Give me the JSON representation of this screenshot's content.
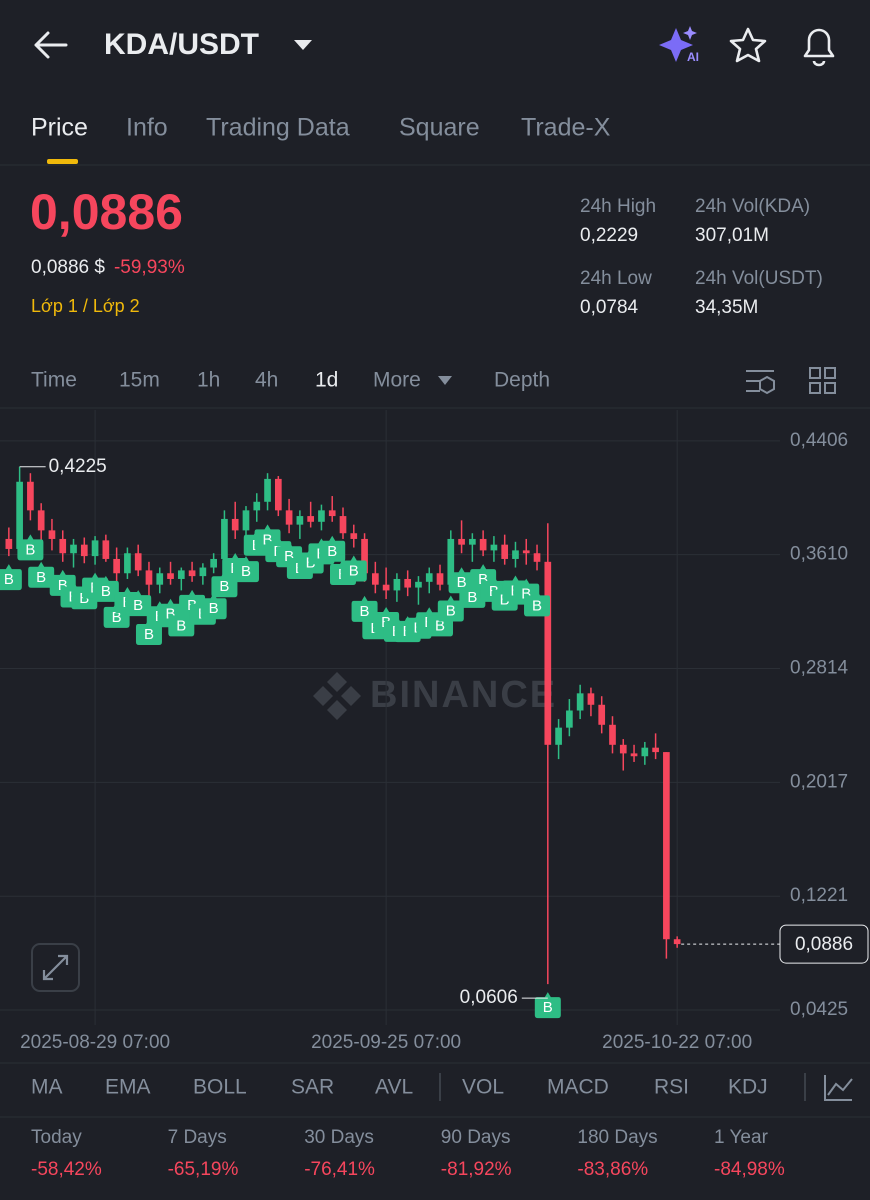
{
  "header": {
    "pair": "KDA/USDT",
    "ai_badge": "AI"
  },
  "tabs": [
    "Price",
    "Info",
    "Trading Data",
    "Square",
    "Trade-X"
  ],
  "price": {
    "last": "0,0886",
    "fiat": "0,0886 $",
    "change": "-59,93%",
    "layer": "Lớp 1 / Lớp 2"
  },
  "stats": [
    {
      "label": "24h High",
      "value": "0,2229"
    },
    {
      "label": "24h Vol(KDA)",
      "value": "307,01M"
    },
    {
      "label": "24h Low",
      "value": "0,0784"
    },
    {
      "label": "24h Vol(USDT)",
      "value": "34,35M"
    }
  ],
  "intervals": [
    "Time",
    "15m",
    "1h",
    "4h",
    "1d",
    "More",
    "Depth"
  ],
  "chart_data": {
    "type": "candlestick",
    "up_color": "#2ebd85",
    "down_color": "#f6465d",
    "grid": true,
    "watermark": "BINANCE",
    "xlim": [
      -0.82,
      71.54
    ],
    "xticks": [
      {
        "value": 8,
        "label": "2025-08-29 07:00"
      },
      {
        "value": 35,
        "label": "2025-09-25 07:00"
      },
      {
        "value": 62,
        "label": "2025-10-22 07:00"
      }
    ],
    "ylim": [
      0.032,
      0.4622
    ],
    "yticks": [
      {
        "value": 0.4406,
        "label": "0,4406"
      },
      {
        "value": 0.361,
        "label": "0,3610"
      },
      {
        "value": 0.2814,
        "label": "0,2814"
      },
      {
        "value": 0.2017,
        "label": "0,2017"
      },
      {
        "value": 0.1221,
        "label": "0,1221"
      },
      {
        "value": 0.0425,
        "label": "0,0425"
      }
    ],
    "open": [
      0.372,
      0.365,
      0.412,
      0.392,
      0.378,
      0.372,
      0.362,
      0.368,
      0.36,
      0.371,
      0.358,
      0.348,
      0.362,
      0.35,
      0.34,
      0.348,
      0.344,
      0.35,
      0.346,
      0.352,
      0.358,
      0.386,
      0.378,
      0.392,
      0.398,
      0.414,
      0.392,
      0.382,
      0.388,
      0.384,
      0.392,
      0.388,
      0.376,
      0.372,
      0.348,
      0.34,
      0.336,
      0.344,
      0.338,
      0.342,
      0.348,
      0.34,
      0.372,
      0.368,
      0.372,
      0.364,
      0.368,
      0.358,
      0.364,
      0.362,
      0.356,
      0.228,
      0.24,
      0.252,
      0.264,
      0.256,
      0.242,
      0.228,
      0.222,
      0.22,
      0.226,
      0.2229,
      0.092
    ],
    "high": [
      0.38,
      0.4225,
      0.418,
      0.397,
      0.386,
      0.378,
      0.372,
      0.373,
      0.374,
      0.375,
      0.366,
      0.366,
      0.368,
      0.356,
      0.352,
      0.356,
      0.352,
      0.356,
      0.355,
      0.362,
      0.392,
      0.398,
      0.395,
      0.404,
      0.418,
      0.416,
      0.4,
      0.392,
      0.398,
      0.396,
      0.402,
      0.394,
      0.382,
      0.376,
      0.356,
      0.352,
      0.348,
      0.35,
      0.346,
      0.352,
      0.354,
      0.378,
      0.385,
      0.376,
      0.378,
      0.374,
      0.375,
      0.37,
      0.372,
      0.368,
      0.383,
      0.246,
      0.26,
      0.27,
      0.268,
      0.262,
      0.248,
      0.232,
      0.228,
      0.23,
      0.236,
      0.2229,
      0.094
    ],
    "low": [
      0.36,
      0.362,
      0.385,
      0.37,
      0.364,
      0.356,
      0.352,
      0.355,
      0.354,
      0.356,
      0.342,
      0.344,
      0.346,
      0.33,
      0.334,
      0.34,
      0.336,
      0.342,
      0.34,
      0.348,
      0.355,
      0.372,
      0.374,
      0.384,
      0.392,
      0.388,
      0.376,
      0.372,
      0.38,
      0.378,
      0.384,
      0.372,
      0.366,
      0.342,
      0.334,
      0.33,
      0.328,
      0.332,
      0.326,
      0.334,
      0.336,
      0.338,
      0.362,
      0.356,
      0.36,
      0.356,
      0.354,
      0.352,
      0.354,
      0.35,
      0.0606,
      0.218,
      0.234,
      0.246,
      0.248,
      0.236,
      0.222,
      0.21,
      0.216,
      0.214,
      0.218,
      0.0784,
      0.086
    ],
    "close": [
      0.365,
      0.412,
      0.392,
      0.378,
      0.372,
      0.362,
      0.368,
      0.36,
      0.371,
      0.358,
      0.348,
      0.362,
      0.35,
      0.34,
      0.348,
      0.344,
      0.35,
      0.346,
      0.352,
      0.358,
      0.386,
      0.378,
      0.392,
      0.398,
      0.414,
      0.392,
      0.382,
      0.388,
      0.384,
      0.392,
      0.388,
      0.376,
      0.372,
      0.348,
      0.34,
      0.336,
      0.344,
      0.338,
      0.342,
      0.348,
      0.34,
      0.372,
      0.368,
      0.372,
      0.364,
      0.368,
      0.358,
      0.364,
      0.362,
      0.356,
      0.228,
      0.24,
      0.252,
      0.264,
      0.256,
      0.242,
      0.228,
      0.222,
      0.22,
      0.226,
      0.2229,
      0.092,
      0.0886
    ],
    "high_label": "0,4225",
    "low_label": "0,0606",
    "last_price_label": "0,0886",
    "buy_marker_label": "B",
    "buy_markers": [
      0,
      2,
      3,
      5,
      6,
      7,
      8,
      9,
      10,
      11,
      12,
      13,
      14,
      15,
      16,
      17,
      18,
      19,
      20,
      21,
      22,
      23,
      24,
      25,
      26,
      27,
      28,
      29,
      30,
      31,
      32,
      33,
      34,
      35,
      36,
      37,
      38,
      39,
      40,
      41,
      42,
      43,
      44,
      45,
      46,
      47,
      48,
      49,
      50
    ]
  },
  "indicators": [
    "MA",
    "EMA",
    "BOLL",
    "SAR",
    "AVL",
    "VOL",
    "MACD",
    "RSI",
    "KDJ"
  ],
  "performance": [
    {
      "label": "Today",
      "value": "-58,42%"
    },
    {
      "label": "7 Days",
      "value": "-65,19%"
    },
    {
      "label": "30 Days",
      "value": "-76,41%"
    },
    {
      "label": "90 Days",
      "value": "-81,92%"
    },
    {
      "label": "180 Days",
      "value": "-83,86%"
    },
    {
      "label": "1 Year",
      "value": "-84,98%"
    }
  ]
}
